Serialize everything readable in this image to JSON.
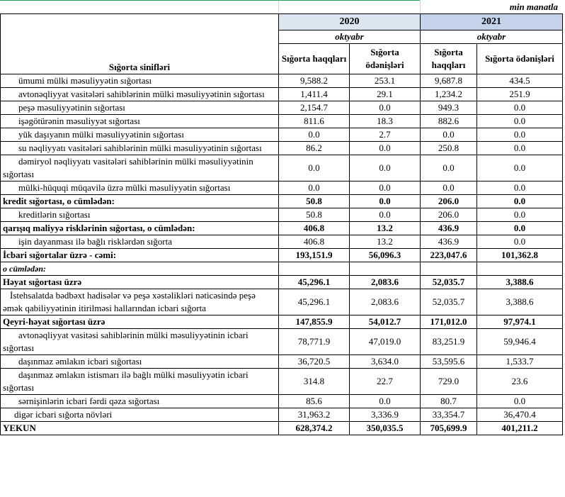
{
  "unit": "min manatla",
  "header": {
    "class_label": "Sığorta sinifləri",
    "years": [
      "2020",
      "2021"
    ],
    "months": [
      "oktyabr",
      "oktyabr"
    ],
    "columns": [
      "Sığorta haqqları",
      "Sığorta ödənişləri",
      "Sığorta haqqları",
      "Sığorta ödənişləri"
    ]
  },
  "rows": [
    {
      "label": "ümumi mülki məsuliyyətin sığortası",
      "values": [
        "9,588.2",
        "253.1",
        "9,687.8",
        "434.5"
      ]
    },
    {
      "label": "avtonəqliyyat vasitələri sahiblərinin mülki məsuliyyətinin sığortası",
      "values": [
        "1,411.4",
        "29.1",
        "1,234.2",
        "251.9"
      ]
    },
    {
      "label": "peşə məsuliyyətinin sığortası",
      "values": [
        "2,154.7",
        "0.0",
        "949.3",
        "0.0"
      ]
    },
    {
      "label": "işəgötürənin məsuliyyət sığortası",
      "values": [
        "811.6",
        "18.3",
        "882.6",
        "0.0"
      ]
    },
    {
      "label": "yük daşıyanın mülki məsuliyyətinin sığortası",
      "values": [
        "0.0",
        "2.7",
        "0.0",
        "0.0"
      ]
    },
    {
      "label": "su nəqliyyatı vasitələri sahiblərinin mülki məsuliyyətinin sığortası",
      "values": [
        "86.2",
        "0.0",
        "250.8",
        "0.0"
      ]
    },
    {
      "label": "dəmiryol nəqliyyatı vasitələri sahiblərinin mülki məsuliyyətinin sığortası",
      "values": [
        "0.0",
        "0.0",
        "0.0",
        "0.0"
      ]
    },
    {
      "label": "mülki-hüquqi müqavilə üzrə mülki məsuliyyətin sığortası",
      "values": [
        "0.0",
        "0.0",
        "0.0",
        "0.0"
      ]
    },
    {
      "label": "kredit sığortası, o cümlədən:",
      "values": [
        "50.8",
        "0.0",
        "206.0",
        "0.0"
      ]
    },
    {
      "label": "kreditlərin sığortası",
      "values": [
        "50.8",
        "0.0",
        "206.0",
        "0.0"
      ]
    },
    {
      "label": "qarışıq maliyyə risklərinin sığortası,  o cümlədən:",
      "values": [
        "406.8",
        "13.2",
        "436.9",
        "0.0"
      ]
    },
    {
      "label": "işin dayanması ilə bağlı risklərdən sığorta",
      "values": [
        "406.8",
        "13.2",
        "436.9",
        "0.0"
      ]
    },
    {
      "label": "İcbari sığortalar üzrə - cəmi:",
      "values": [
        "193,151.9",
        "56,096.3",
        "223,047.6",
        "101,362.8"
      ]
    },
    {
      "label": "o cümlədən:"
    },
    {
      "label": "Həyat sığortası üzrə",
      "values": [
        "45,296.1",
        "2,083.6",
        "52,035.7",
        "3,388.6"
      ]
    },
    {
      "label": "İstehsalatda bədbəxt hadisələr və peşə xəstəlikləri nəticəsində peşə əmək qabiliyyətinin itirilməsi hallarından icbari sığorta",
      "values": [
        "45,296.1",
        "2,083.6",
        "52,035.7",
        "3,388.6"
      ]
    },
    {
      "label": "Qeyri-həyat sığortası üzrə",
      "values": [
        "147,855.9",
        "54,012.7",
        "171,012.0",
        "97,974.1"
      ]
    },
    {
      "label": "avtonəqliyyat vasitəsi sahiblərinin mülki məsuliyyətinin icbari sığortası",
      "values": [
        "78,771.9",
        "47,019.0",
        "83,251.9",
        "59,946.4"
      ]
    },
    {
      "label": "daşınmaz əmlakın icbari sığortası",
      "values": [
        "36,720.5",
        "3,634.0",
        "53,595.6",
        "1,533.7"
      ]
    },
    {
      "label": "daşınmaz əmlakın istismarı ilə bağlı mülki məsuliyyətin icbari sığortası",
      "values": [
        "314.8",
        "22.7",
        "729.0",
        "23.6"
      ]
    },
    {
      "label": "sərnişinlərin icbari fərdi qəza sığortası",
      "values": [
        "85.6",
        "0.0",
        "80.7",
        "0.0"
      ]
    },
    {
      "label": "digər icbari sığorta növləri",
      "values": [
        "31,963.2",
        "3,336.9",
        "33,354.7",
        "36,470.4"
      ]
    },
    {
      "label": "YEKUN",
      "values": [
        "628,374.2",
        "350,035.5",
        "705,699.9",
        "401,211.2"
      ]
    }
  ]
}
